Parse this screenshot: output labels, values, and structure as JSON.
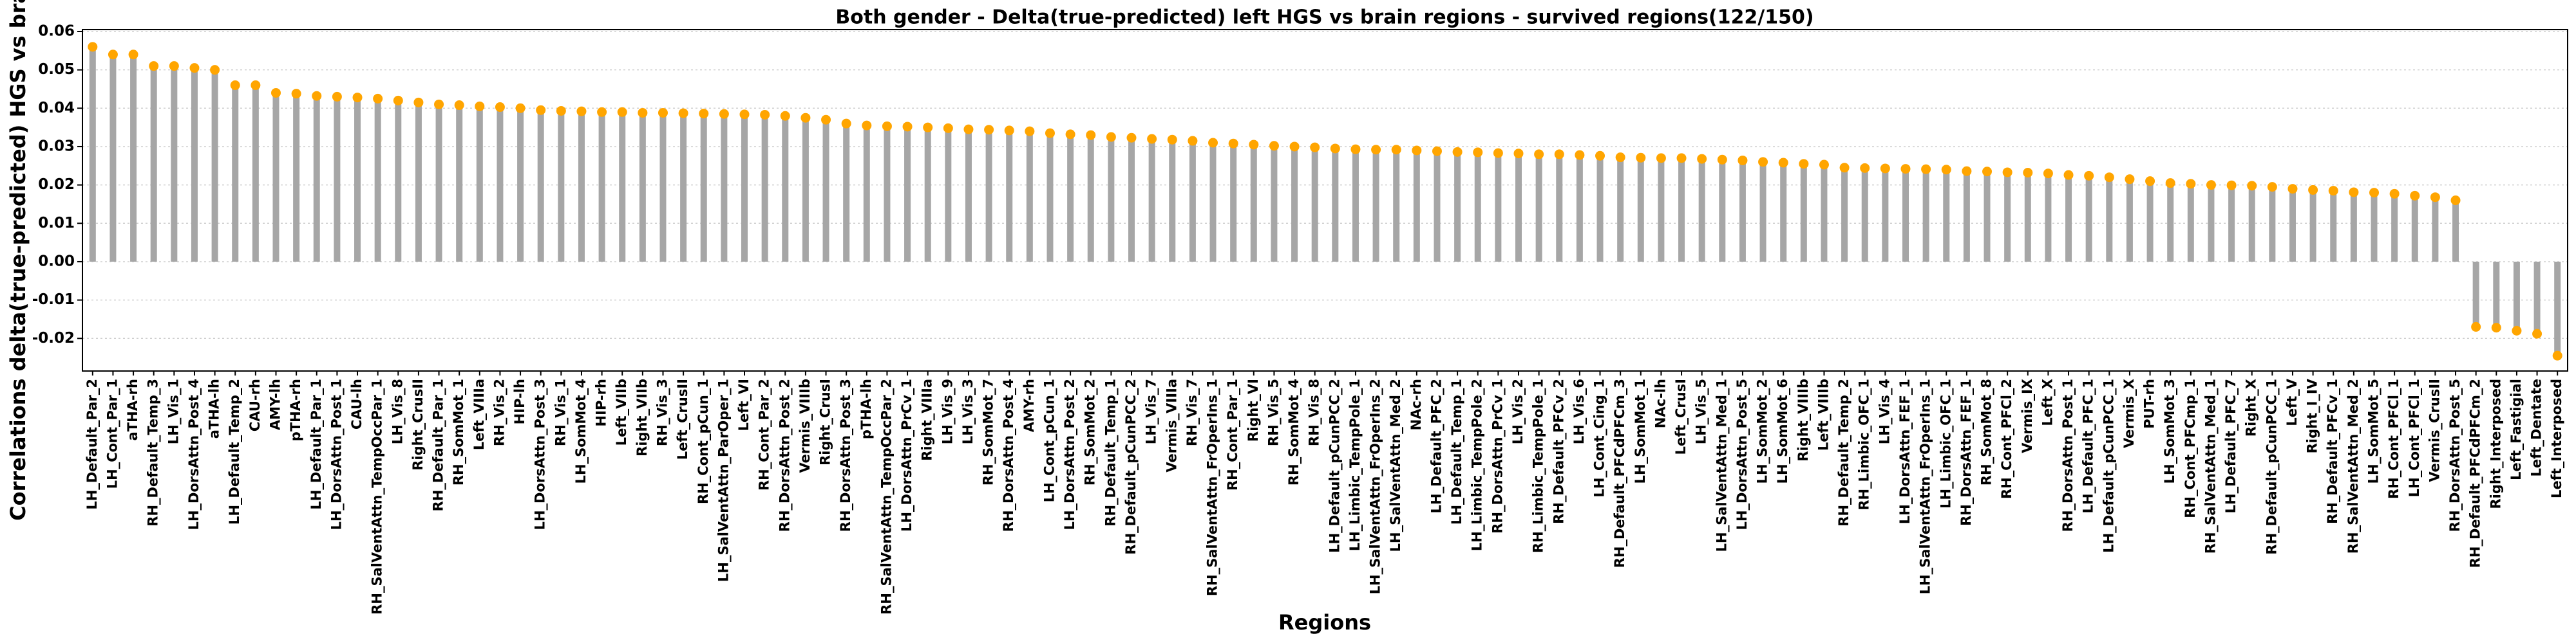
{
  "chart_data": {
    "type": "bar",
    "title": "Both gender - Delta(true-predicted) left HGS vs brain regions - survived regions(122/150)",
    "xlabel": "Regions",
    "ylabel": "Correlations delta(true-predicted) HGS vs brain",
    "categories": [
      "LH_Default_Par_2",
      "LH_Cont_Par_1",
      "aTHA-rh",
      "RH_Default_Temp_3",
      "LH_Vis_1",
      "LH_DorsAttn_Post_4",
      "aTHA-lh",
      "LH_Default_Temp_2",
      "CAU-rh",
      "AMY-lh",
      "pTHA-rh",
      "LH_Default_Par_1",
      "LH_DorsAttn_Post_1",
      "CAU-lh",
      "RH_SalVentAttn_TempOccPar_1",
      "LH_Vis_8",
      "Right_CrusII",
      "RH_Default_Par_1",
      "RH_SomMot_1",
      "Left_VIIIa",
      "RH_Vis_2",
      "HIP-lh",
      "LH_DorsAttn_Post_3",
      "RH_Vis_1",
      "LH_SomMot_4",
      "HIP-rh",
      "Left_VIIb",
      "Right_VIIb",
      "RH_Vis_3",
      "Left_CrusII",
      "RH_Cont_pCun_1",
      "LH_SalVentAttn_ParOper_1",
      "Left_VI",
      "RH_Cont_Par_2",
      "RH_DorsAttn_Post_2",
      "Vermis_VIIIb",
      "Right_CrusI",
      "RH_DorsAttn_Post_3",
      "pTHA-lh",
      "RH_SalVentAttn_TempOccPar_2",
      "LH_DorsAttn_PrCv_1",
      "Right_VIIIa",
      "LH_Vis_9",
      "LH_Vis_3",
      "RH_SomMot_7",
      "RH_DorsAttn_Post_4",
      "AMY-rh",
      "LH_Cont_pCun_1",
      "LH_DorsAttn_Post_2",
      "RH_SomMot_2",
      "RH_Default_Temp_1",
      "RH_Default_pCunPCC_2",
      "LH_Vis_7",
      "Vermis_VIIIa",
      "RH_Vis_7",
      "RH_SalVentAttn_FrOperIns_1",
      "RH_Cont_Par_1",
      "Right_VI",
      "RH_Vis_5",
      "RH_SomMot_4",
      "RH_Vis_8",
      "LH_Default_pCunPCC_2",
      "LH_Limbic_TempPole_1",
      "LH_SalVentAttn_FrOperIns_2",
      "LH_SalVentAttn_Med_2",
      "NAc-rh",
      "LH_Default_PFC_2",
      "LH_Default_Temp_1",
      "LH_Limbic_TempPole_2",
      "RH_DorsAttn_PrCv_1",
      "LH_Vis_2",
      "RH_Limbic_TempPole_1",
      "RH_Default_PFCv_2",
      "LH_Vis_6",
      "LH_Cont_Cing_1",
      "RH_Default_PFCdPFCm_3",
      "LH_SomMot_1",
      "NAc-lh",
      "Left_CrusI",
      "LH_Vis_5",
      "LH_SalVentAttn_Med_1",
      "LH_DorsAttn_Post_5",
      "LH_SomMot_2",
      "LH_SomMot_6",
      "Right_VIIIb",
      "Left_VIIIb",
      "RH_Default_Temp_2",
      "RH_Limbic_OFC_1",
      "LH_Vis_4",
      "LH_DorsAttn_FEF_1",
      "LH_SalVentAttn_FrOperIns_1",
      "LH_Limbic_OFC_1",
      "RH_DorsAttn_FEF_1",
      "RH_SomMot_8",
      "RH_Cont_PFCl_2",
      "Vermis_IX",
      "Left_X",
      "RH_DorsAttn_Post_1",
      "LH_Default_PFC_1",
      "LH_Default_pCunPCC_1",
      "Vermis_X",
      "PUT-rh",
      "LH_SomMot_3",
      "RH_Cont_PFCmp_1",
      "RH_SalVentAttn_Med_1",
      "LH_Default_PFC_7",
      "Right_X",
      "RH_Default_pCunPCC_1",
      "Left_V",
      "Right_I_IV",
      "RH_Default_PFCv_1",
      "RH_SalVentAttn_Med_2",
      "LH_SomMot_5",
      "RH_Cont_PFCl_1",
      "LH_Cont_PFCl_1",
      "Vermis_CrusII",
      "RH_DorsAttn_Post_5",
      "RH_Default_PFCdPFCm_2",
      "Right_Interposed",
      "Left_Fastigial",
      "Left_Dentate",
      "Left_Interposed"
    ],
    "values": [
      0.056,
      0.054,
      0.054,
      0.051,
      0.051,
      0.0505,
      0.05,
      0.046,
      0.046,
      0.044,
      0.0438,
      0.0432,
      0.043,
      0.0428,
      0.0425,
      0.042,
      0.0415,
      0.041,
      0.0408,
      0.0405,
      0.0403,
      0.04,
      0.0395,
      0.0393,
      0.0392,
      0.039,
      0.039,
      0.0388,
      0.0388,
      0.0387,
      0.0386,
      0.0385,
      0.0384,
      0.0383,
      0.038,
      0.0375,
      0.037,
      0.036,
      0.0355,
      0.0353,
      0.0352,
      0.035,
      0.0348,
      0.0345,
      0.0344,
      0.0342,
      0.034,
      0.0335,
      0.0332,
      0.033,
      0.0325,
      0.0323,
      0.032,
      0.0318,
      0.0315,
      0.031,
      0.0308,
      0.0305,
      0.0302,
      0.03,
      0.0298,
      0.0295,
      0.0293,
      0.0292,
      0.0292,
      0.029,
      0.0288,
      0.0286,
      0.0285,
      0.0283,
      0.0282,
      0.028,
      0.028,
      0.0278,
      0.0276,
      0.0272,
      0.0271,
      0.027,
      0.027,
      0.0268,
      0.0266,
      0.0264,
      0.026,
      0.0258,
      0.0255,
      0.0253,
      0.0245,
      0.0244,
      0.0243,
      0.0242,
      0.0241,
      0.024,
      0.0236,
      0.0235,
      0.0233,
      0.0232,
      0.023,
      0.0226,
      0.0224,
      0.022,
      0.0215,
      0.021,
      0.0205,
      0.0203,
      0.02,
      0.0199,
      0.0198,
      0.0195,
      0.019,
      0.0187,
      0.0185,
      0.0181,
      0.018,
      0.0177,
      0.0172,
      0.0168,
      0.016,
      -0.017,
      -0.0172,
      -0.018,
      -0.0188,
      -0.0245
    ],
    "color": "#a6a6a6",
    "marker_color": "#ffa500",
    "ylim": [
      -0.0285,
      0.0605
    ],
    "yticks": [
      -0.02,
      -0.01,
      {
        "value": 0,
        "label": "0.00"
      },
      0.01,
      0.02,
      0.03,
      0.04,
      0.05,
      0.06
    ],
    "grid": true
  }
}
